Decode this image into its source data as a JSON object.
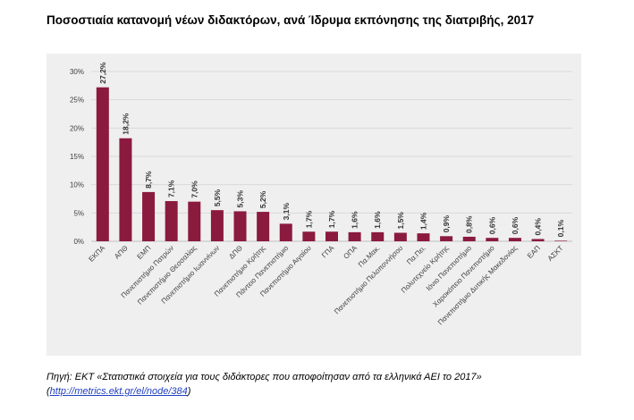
{
  "title": "Ποσοστιαία κατανομή νέων διδακτόρων, ανά Ίδρυμα εκπόνησης της διατριβής, 2017",
  "source": {
    "text": "Πηγή: ΕΚΤ «Στατιστικά στοιχεία για τους διδάκτορες που αποφοίτησαν από τα ελληνικά ΑΕΙ το 2017»",
    "link_open": "(",
    "link": "http://metrics.ekt.gr/el/node/384",
    "link_close": ")"
  },
  "chart_data": {
    "type": "bar",
    "title": "Ποσοστιαία κατανομή νέων διδακτόρων, ανά Ίδρυμα εκπόνησης της διατριβής, 2017",
    "xlabel": "",
    "ylabel": "",
    "ylim": [
      0,
      30
    ],
    "yticks": [
      "0%",
      "5%",
      "10%",
      "15%",
      "20%",
      "25%",
      "30%"
    ],
    "grid": true,
    "bar_color": "#8b1a3f",
    "categories": [
      "ΕΚΠΑ",
      "ΑΠΘ",
      "ΕΜΠ",
      "Πανεπιστήμιο Πατρών",
      "Πανεπιστήμιο Θεσσαλίας",
      "Πανεπιστήμιο Ιωαννίνων",
      "ΔΠΘ",
      "Πανεπιστήμιο Κρήτης",
      "Πάντειο Πανεπιστήμιο",
      "Πανεπιστήμιο Αιγαίου",
      "ΓΠΑ",
      "ΟΠΑ",
      "Πα.Μακ.",
      "Πανεπιστήμιο Πελοποννήσου",
      "Πα.Πει.",
      "Πολυτεχνείο Κρήτης",
      "Ιόνιο Πανεπιστήμιο",
      "Χαροκόπειο Πανεπιστήμιο",
      "Πανεπιστήμιο Δυτικής Μακεδονίας",
      "ΕΑΠ",
      "ΑΣΚΤ"
    ],
    "values": [
      27.2,
      18.2,
      8.7,
      7.1,
      7.0,
      5.5,
      5.3,
      5.2,
      3.1,
      1.7,
      1.7,
      1.6,
      1.6,
      1.5,
      1.4,
      0.9,
      0.8,
      0.6,
      0.6,
      0.4,
      0.1
    ],
    "data_labels": [
      "27,2%",
      "18,2%",
      "8,7%",
      "7,1%",
      "7,0%",
      "5,5%",
      "5,3%",
      "5,2%",
      "3,1%",
      "1,7%",
      "1,7%",
      "1,6%",
      "1,6%",
      "1,5%",
      "1,4%",
      "0,9%",
      "0,8%",
      "0,6%",
      "0,6%",
      "0,4%",
      "0,1%"
    ]
  }
}
